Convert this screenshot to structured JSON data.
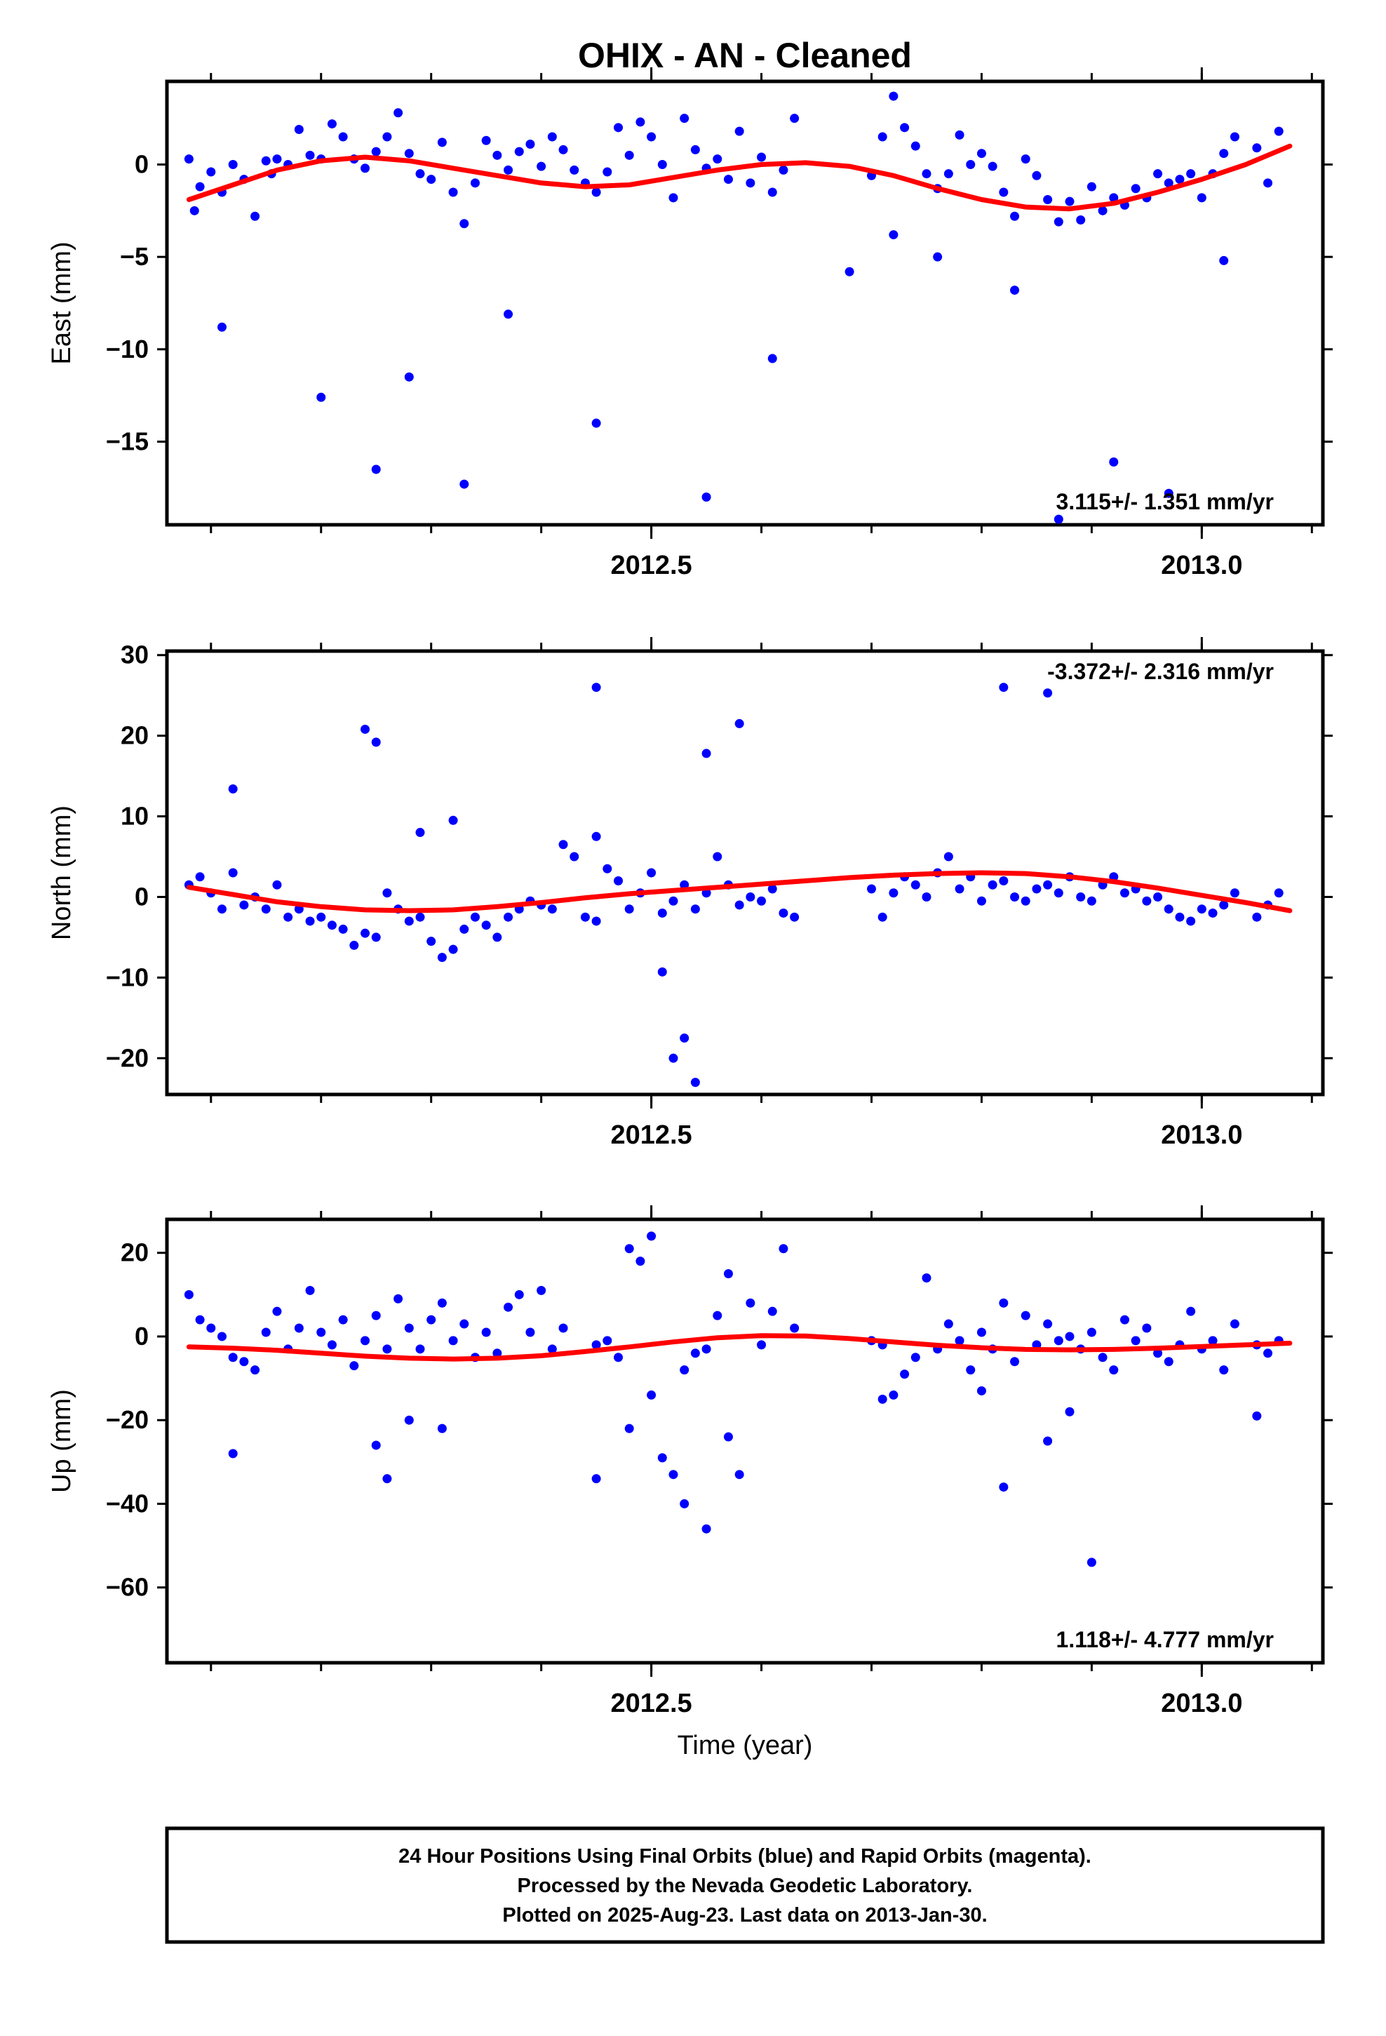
{
  "page": {
    "title": "OHIX  - AN - Cleaned",
    "footer": [
      "24 Hour Positions Using Final Orbits (blue) and Rapid Orbits (magenta).",
      "Processed by the Nevada Geodetic Laboratory.",
      "Plotted on 2025-Aug-23. Last data on 2013-Jan-30."
    ]
  },
  "colors": {
    "points": "#0000ff",
    "fit": "#ff0000",
    "frame": "#000000"
  },
  "chart_data": [
    {
      "type": "scatter",
      "ylabel": "East (mm)",
      "xlabel": "",
      "xlim": [
        2012.06,
        2013.11
      ],
      "ylim": [
        -19.5,
        4.5
      ],
      "xticks": [
        2012.5,
        2013.0
      ],
      "xtick_labels": [
        "2012.5",
        "2013.0"
      ],
      "yticks": [
        -15,
        -10,
        -5,
        0
      ],
      "yticks_minor_step": 5,
      "xticks_minor_step": 0.1,
      "rate_label": "3.115+/- 1.351 mm/yr",
      "rate_position": "bottom-right",
      "points_x": [
        2012.08,
        2012.085,
        2012.09,
        2012.1,
        2012.11,
        2012.12,
        2012.13,
        2012.14,
        2012.15,
        2012.155,
        2012.16,
        2012.17,
        2012.18,
        2012.19,
        2012.2,
        2012.21,
        2012.22,
        2012.23,
        2012.24,
        2012.25,
        2012.26,
        2012.27,
        2012.28,
        2012.29,
        2012.3,
        2012.31,
        2012.32,
        2012.33,
        2012.34,
        2012.35,
        2012.36,
        2012.37,
        2012.38,
        2012.39,
        2012.4,
        2012.41,
        2012.42,
        2012.43,
        2012.44,
        2012.45,
        2012.46,
        2012.47,
        2012.48,
        2012.49,
        2012.5,
        2012.51,
        2012.52,
        2012.53,
        2012.54,
        2012.55,
        2012.56,
        2012.57,
        2012.58,
        2012.59,
        2012.6,
        2012.61,
        2012.62,
        2012.63,
        2012.7,
        2012.71,
        2012.72,
        2012.73,
        2012.74,
        2012.75,
        2012.76,
        2012.77,
        2012.78,
        2012.79,
        2012.8,
        2012.81,
        2012.82,
        2012.83,
        2012.84,
        2012.85,
        2012.86,
        2012.87,
        2012.88,
        2012.89,
        2012.9,
        2012.91,
        2012.92,
        2012.93,
        2012.94,
        2012.95,
        2012.96,
        2012.97,
        2012.98,
        2012.99,
        2013.0,
        2013.01,
        2013.02,
        2013.03,
        2013.05,
        2013.06,
        2013.07,
        2012.11,
        2012.2,
        2012.25,
        2012.28,
        2012.33,
        2012.37,
        2012.45,
        2012.55,
        2012.61,
        2012.68,
        2012.72,
        2012.76,
        2012.83,
        2012.87,
        2012.92,
        2012.97,
        2013.02
      ],
      "points_y": [
        0.3,
        -2.5,
        -1.2,
        -0.4,
        -1.5,
        0.0,
        -0.8,
        -2.8,
        0.2,
        -0.5,
        0.3,
        0.0,
        1.9,
        0.5,
        0.3,
        2.2,
        1.5,
        0.3,
        -0.2,
        0.7,
        1.5,
        2.8,
        0.6,
        -0.5,
        -0.8,
        1.2,
        -1.5,
        -3.2,
        -1.0,
        1.3,
        0.5,
        -0.3,
        0.7,
        1.1,
        -0.1,
        1.5,
        0.8,
        -0.3,
        -1.0,
        -1.5,
        -0.4,
        2.0,
        0.5,
        2.3,
        1.5,
        0.0,
        -1.8,
        2.5,
        0.8,
        -0.2,
        0.3,
        -0.8,
        1.8,
        -1.0,
        0.4,
        -1.5,
        -0.3,
        2.5,
        -0.6,
        1.5,
        3.7,
        2.0,
        1.0,
        -0.5,
        -1.3,
        -0.5,
        1.6,
        0.0,
        0.6,
        -0.1,
        -1.5,
        -2.8,
        0.3,
        -0.6,
        -1.9,
        -3.1,
        -2.0,
        -3.0,
        -1.2,
        -2.5,
        -1.8,
        -2.2,
        -1.3,
        -1.8,
        -0.5,
        -1.0,
        -0.8,
        -0.5,
        -1.8,
        -0.5,
        0.6,
        1.5,
        0.9,
        -1.0,
        1.8,
        -8.8,
        -12.6,
        -16.5,
        -11.5,
        -17.3,
        -8.1,
        -14.0,
        -18.0,
        -10.5,
        -5.8,
        -3.8,
        -5.0,
        -6.8,
        -19.2,
        -16.1,
        -17.8,
        -5.2
      ],
      "fit_x": [
        2012.08,
        2012.12,
        2012.16,
        2012.2,
        2012.24,
        2012.28,
        2012.32,
        2012.36,
        2012.4,
        2012.44,
        2012.48,
        2012.52,
        2012.56,
        2012.6,
        2012.64,
        2012.68,
        2012.72,
        2012.76,
        2012.8,
        2012.84,
        2012.88,
        2012.92,
        2012.96,
        2013.0,
        2013.04,
        2013.08
      ],
      "fit_y": [
        -1.9,
        -1.1,
        -0.3,
        0.2,
        0.4,
        0.2,
        -0.2,
        -0.6,
        -1.0,
        -1.2,
        -1.1,
        -0.7,
        -0.3,
        0.0,
        0.1,
        -0.1,
        -0.6,
        -1.3,
        -1.9,
        -2.3,
        -2.4,
        -2.1,
        -1.5,
        -0.8,
        0.0,
        1.0
      ]
    },
    {
      "type": "scatter",
      "ylabel": "North (mm)",
      "xlabel": "",
      "xlim": [
        2012.06,
        2013.11
      ],
      "ylim": [
        -24.5,
        30.5
      ],
      "xticks": [
        2012.5,
        2013.0
      ],
      "xtick_labels": [
        "2012.5",
        "2013.0"
      ],
      "yticks": [
        -20,
        -10,
        0,
        10,
        20,
        30
      ],
      "yticks_minor_step": 10,
      "xticks_minor_step": 0.1,
      "rate_label": "-3.372+/- 2.316 mm/yr",
      "rate_position": "top-right",
      "points_x": [
        2012.08,
        2012.09,
        2012.1,
        2012.11,
        2012.12,
        2012.13,
        2012.14,
        2012.15,
        2012.16,
        2012.17,
        2012.18,
        2012.19,
        2012.2,
        2012.21,
        2012.22,
        2012.23,
        2012.24,
        2012.25,
        2012.26,
        2012.27,
        2012.28,
        2012.29,
        2012.3,
        2012.31,
        2012.32,
        2012.33,
        2012.34,
        2012.35,
        2012.36,
        2012.37,
        2012.38,
        2012.39,
        2012.4,
        2012.41,
        2012.42,
        2012.43,
        2012.44,
        2012.45,
        2012.46,
        2012.47,
        2012.48,
        2012.49,
        2012.5,
        2012.51,
        2012.52,
        2012.53,
        2012.54,
        2012.55,
        2012.56,
        2012.57,
        2012.58,
        2012.59,
        2012.6,
        2012.61,
        2012.62,
        2012.63,
        2012.7,
        2012.71,
        2012.72,
        2012.73,
        2012.74,
        2012.75,
        2012.76,
        2012.77,
        2012.78,
        2012.79,
        2012.8,
        2012.81,
        2012.82,
        2012.83,
        2012.84,
        2012.85,
        2012.86,
        2012.87,
        2012.88,
        2012.89,
        2012.9,
        2012.91,
        2012.92,
        2012.93,
        2012.94,
        2012.95,
        2012.96,
        2012.97,
        2012.98,
        2012.99,
        2013.0,
        2013.01,
        2013.02,
        2013.03,
        2013.05,
        2013.06,
        2013.07,
        2012.12,
        2012.24,
        2012.25,
        2012.29,
        2012.32,
        2012.45,
        2012.55,
        2012.58,
        2012.82,
        2012.86,
        2012.45,
        2012.51,
        2012.53,
        2012.52,
        2012.54
      ],
      "points_y": [
        1.5,
        2.5,
        0.5,
        -1.5,
        3.0,
        -1.0,
        0.0,
        -1.5,
        1.5,
        -2.5,
        -1.5,
        -3.0,
        -2.5,
        -3.5,
        -4.0,
        -6.0,
        -4.5,
        -5.0,
        0.5,
        -1.5,
        -3.0,
        -2.5,
        -5.5,
        -7.5,
        -6.5,
        -4.0,
        -2.5,
        -3.5,
        -5.0,
        -2.5,
        -1.5,
        -0.5,
        -1.0,
        -1.5,
        6.5,
        5.0,
        -2.5,
        -3.0,
        3.5,
        2.0,
        -1.5,
        0.5,
        3.0,
        -2.0,
        -0.5,
        1.5,
        -1.5,
        0.5,
        5.0,
        1.5,
        -1.0,
        0.0,
        -0.5,
        1.0,
        -2.0,
        -2.5,
        1.0,
        -2.5,
        0.5,
        2.5,
        1.5,
        0.0,
        3.0,
        5.0,
        1.0,
        2.5,
        -0.5,
        1.5,
        2.0,
        0.0,
        -0.5,
        1.0,
        1.5,
        0.5,
        2.5,
        0.0,
        -0.5,
        1.5,
        2.5,
        0.5,
        1.0,
        -0.5,
        0.0,
        -1.5,
        -2.5,
        -3.0,
        -1.5,
        -2.0,
        -1.0,
        0.5,
        -2.5,
        -1.0,
        0.5,
        13.4,
        20.8,
        19.2,
        8.0,
        9.5,
        26.0,
        17.8,
        21.5,
        26.0,
        25.3,
        7.5,
        -9.3,
        -17.5,
        -20.0,
        -23.0
      ],
      "fit_x": [
        2012.08,
        2012.12,
        2012.16,
        2012.2,
        2012.24,
        2012.28,
        2012.32,
        2012.36,
        2012.4,
        2012.44,
        2012.48,
        2012.52,
        2012.56,
        2012.6,
        2012.64,
        2012.68,
        2012.72,
        2012.76,
        2012.8,
        2012.84,
        2012.88,
        2012.92,
        2012.96,
        2013.0,
        2013.04,
        2013.08
      ],
      "fit_y": [
        1.2,
        0.3,
        -0.6,
        -1.2,
        -1.6,
        -1.7,
        -1.6,
        -1.2,
        -0.7,
        -0.1,
        0.4,
        0.8,
        1.2,
        1.6,
        2.0,
        2.4,
        2.7,
        2.9,
        3.0,
        2.9,
        2.5,
        1.9,
        1.1,
        0.2,
        -0.7,
        -1.7
      ]
    },
    {
      "type": "scatter",
      "ylabel": "Up (mm)",
      "xlabel": "Time (year)",
      "xlim": [
        2012.06,
        2013.11
      ],
      "ylim": [
        -78,
        28
      ],
      "xticks": [
        2012.5,
        2013.0
      ],
      "xtick_labels": [
        "2012.5",
        "2013.0"
      ],
      "yticks": [
        -60,
        -40,
        -20,
        0,
        20
      ],
      "yticks_minor_step": 20,
      "xticks_minor_step": 0.1,
      "rate_label": "1.118+/- 4.777 mm/yr",
      "rate_position": "bottom-right",
      "points_x": [
        2012.08,
        2012.09,
        2012.1,
        2012.11,
        2012.12,
        2012.13,
        2012.14,
        2012.15,
        2012.16,
        2012.17,
        2012.18,
        2012.19,
        2012.2,
        2012.21,
        2012.22,
        2012.23,
        2012.24,
        2012.25,
        2012.26,
        2012.27,
        2012.28,
        2012.29,
        2012.3,
        2012.31,
        2012.32,
        2012.33,
        2012.34,
        2012.35,
        2012.36,
        2012.37,
        2012.38,
        2012.39,
        2012.4,
        2012.41,
        2012.42,
        2012.45,
        2012.46,
        2012.47,
        2012.48,
        2012.49,
        2012.5,
        2012.53,
        2012.54,
        2012.55,
        2012.56,
        2012.57,
        2012.59,
        2012.6,
        2012.61,
        2012.62,
        2012.63,
        2012.7,
        2012.71,
        2012.72,
        2012.73,
        2012.74,
        2012.75,
        2012.76,
        2012.77,
        2012.78,
        2012.79,
        2012.8,
        2012.81,
        2012.82,
        2012.83,
        2012.84,
        2012.85,
        2012.86,
        2012.87,
        2012.88,
        2012.89,
        2012.9,
        2012.91,
        2012.92,
        2012.93,
        2012.94,
        2012.95,
        2012.96,
        2012.97,
        2012.98,
        2012.99,
        2013.0,
        2013.01,
        2013.02,
        2013.03,
        2013.05,
        2013.06,
        2013.07,
        2012.12,
        2012.25,
        2012.26,
        2012.28,
        2012.31,
        2012.45,
        2012.48,
        2012.5,
        2012.51,
        2012.52,
        2012.53,
        2012.55,
        2012.57,
        2012.58,
        2012.71,
        2012.8,
        2012.82,
        2012.86,
        2012.9,
        2012.88,
        2013.05
      ],
      "points_y": [
        10,
        4,
        2,
        0,
        -5,
        -6,
        -8,
        1,
        6,
        -3,
        2,
        11,
        1,
        -2,
        4,
        -7,
        -1,
        5,
        -3,
        9,
        2,
        -3,
        4,
        8,
        -1,
        3,
        -5,
        1,
        -4,
        7,
        10,
        1,
        11,
        -3,
        2,
        -2,
        -1,
        -5,
        21,
        18,
        24,
        -8,
        -4,
        -3,
        5,
        15,
        8,
        -2,
        6,
        21,
        2,
        -1,
        -2,
        -14,
        -9,
        -5,
        14,
        -3,
        3,
        -1,
        -8,
        1,
        -3,
        8,
        -6,
        5,
        -2,
        3,
        -1,
        0,
        -3,
        1,
        -5,
        -8,
        4,
        -1,
        2,
        -4,
        -6,
        -2,
        6,
        -3,
        -1,
        -8,
        3,
        -2,
        -4,
        -1,
        -28,
        -26,
        -34,
        -20,
        -22,
        -34,
        -22,
        -14,
        -29,
        -33,
        -40,
        -46,
        -24,
        -33,
        -15,
        -13,
        -36,
        -25,
        -54,
        -18,
        -19
      ],
      "fit_x": [
        2012.08,
        2012.12,
        2012.16,
        2012.2,
        2012.24,
        2012.28,
        2012.32,
        2012.36,
        2012.4,
        2012.44,
        2012.48,
        2012.52,
        2012.56,
        2012.6,
        2012.64,
        2012.68,
        2012.72,
        2012.76,
        2012.8,
        2012.84,
        2012.88,
        2012.92,
        2012.96,
        2013.0,
        2013.04,
        2013.08
      ],
      "fit_y": [
        -2.5,
        -2.8,
        -3.3,
        -4.0,
        -4.7,
        -5.2,
        -5.4,
        -5.2,
        -4.6,
        -3.6,
        -2.5,
        -1.3,
        -0.3,
        0.2,
        0.1,
        -0.5,
        -1.3,
        -2.1,
        -2.7,
        -3.1,
        -3.2,
        -3.1,
        -2.8,
        -2.4,
        -2.0,
        -1.6
      ]
    }
  ]
}
